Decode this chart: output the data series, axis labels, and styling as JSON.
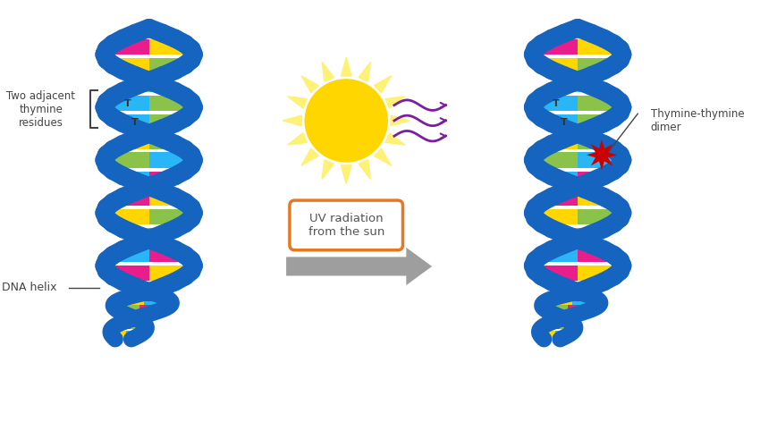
{
  "bg_color": "#ffffff",
  "dna_backbone_color": "#1565C0",
  "dna_backbone_color2": "#1976D2",
  "base_colors": [
    "#E91E8C",
    "#FFD600",
    "#8BC34A",
    "#29B6F6"
  ],
  "thymine_color": "#29B6F6",
  "thymine_green": "#8BC34A",
  "label_two_adjacent": "Two adjacent\nthymine\nresidues",
  "label_dna_helix": "DNA helix",
  "label_uv": "UV radiation\nfrom the sun",
  "label_thymine_dimer": "Thymine-thymine\ndimer",
  "arrow_body_color": "#9E9E9E",
  "uv_box_color": "#E87722",
  "sun_body_color": "#FFD600",
  "sun_ray_color": "#FFF176",
  "uv_wave_color": "#7B1FA2",
  "star_color": "#CC0000",
  "text_color": "#444444"
}
